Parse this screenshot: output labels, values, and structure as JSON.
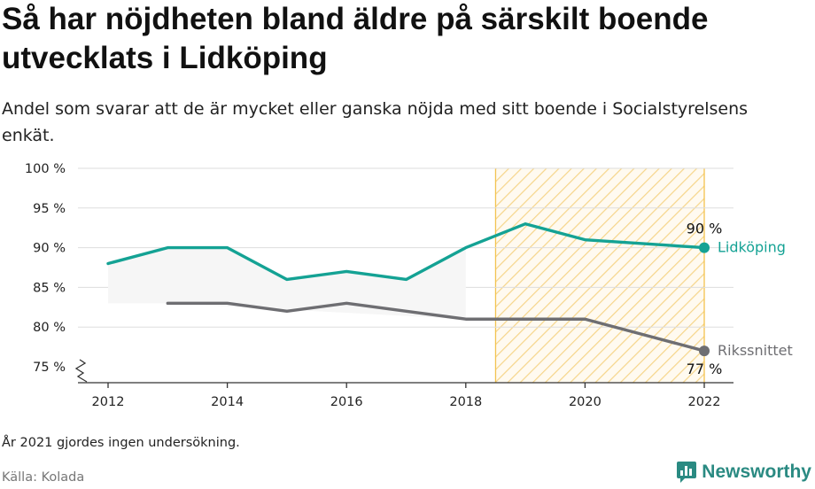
{
  "title": "Så har nöjdheten bland äldre på särskilt boende utvecklats i Lidköping",
  "subtitle": "Andel som svarar att de är mycket eller ganska nöjda med sitt boende i Socialstyrelsens enkät.",
  "footnote": "År 2021 gjordes ingen undersökning.",
  "source": "Källa: Kolada",
  "brand": "Newsworthy",
  "colors": {
    "lidkoping": "#14a294",
    "riket": "#6e6e72",
    "highlight_stripe": "#f6d58a",
    "highlight_border": "#f3c34f",
    "grid": "#dddddd",
    "axis": "#333333",
    "fill": "#ececec"
  },
  "chart_data": {
    "type": "line",
    "x_ticks": [
      2012,
      2014,
      2016,
      2018,
      2020,
      2022
    ],
    "x_tick_labels": [
      "2012",
      "2014",
      "2016",
      "2018",
      "2020",
      "2022"
    ],
    "xlim": [
      2012,
      2022
    ],
    "y_ticks": [
      75,
      80,
      85,
      90,
      95,
      100
    ],
    "y_tick_labels": [
      "75 %",
      "80 %",
      "85 %",
      "90 %",
      "95 %",
      "100 %"
    ],
    "ylim": [
      75,
      100
    ],
    "axis_break": true,
    "grid": true,
    "highlight_range": [
      2018.5,
      2022
    ],
    "series": [
      {
        "name": "Lidköping",
        "color_key": "lidkoping",
        "x": [
          2012,
          2013,
          2014,
          2015,
          2016,
          2017,
          2018,
          2019,
          2020,
          2022
        ],
        "y": [
          88,
          90,
          90,
          86,
          87,
          86,
          90,
          93,
          91,
          90
        ],
        "end_label": "90 %"
      },
      {
        "name": "Rikssnittet",
        "color_key": "riket",
        "x": [
          2013,
          2014,
          2015,
          2016,
          2017,
          2018,
          2019,
          2020,
          2022
        ],
        "y": [
          83,
          83,
          82,
          83,
          82,
          81,
          81,
          81,
          77
        ],
        "end_label": "77 %"
      }
    ]
  }
}
